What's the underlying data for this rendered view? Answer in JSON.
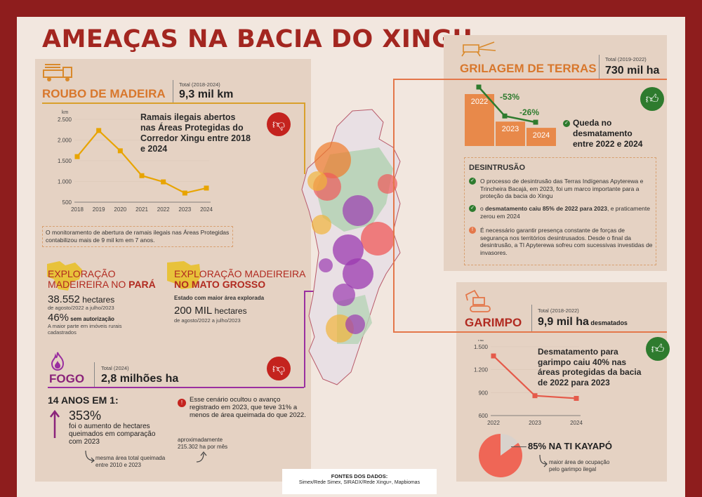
{
  "title": "AMEAÇAS NA BACIA DO XINGU",
  "roubo": {
    "heading": "ROUBO DE MADEIRA",
    "total_label": "Total (2018-2024)",
    "total_value": "9,3 mil km",
    "chart_desc": "Ramais ilegais abertos nas Áreas Protegidas do Corredor Xingu entre 2018 e 2024",
    "note": "O monitoramento de abertura de ramais ilegais nas Áreas Protegidas contabilizou mais de 9 mil km em 7 anos."
  },
  "chart_data": [
    {
      "type": "line",
      "ylabel": "km",
      "categories": [
        "2018",
        "2019",
        "2020",
        "2021",
        "2022",
        "2023",
        "2024"
      ],
      "values": [
        1600,
        2230,
        1740,
        1140,
        990,
        720,
        840
      ],
      "ylim": [
        500,
        2500
      ],
      "yticks": [
        "2.500",
        "2.000",
        "1.500",
        "1.000",
        "500"
      ],
      "color": "#e8a400"
    },
    {
      "type": "line",
      "ylabel": "ha",
      "categories": [
        "2022",
        "2023",
        "2024"
      ],
      "values": [
        1380,
        860,
        825
      ],
      "ylim": [
        600,
        1500
      ],
      "yticks": [
        "1.500",
        "1.200",
        "900",
        "600"
      ],
      "color": "#e55a4a"
    },
    {
      "type": "bar",
      "categories": [
        "2022",
        "2023",
        "2024"
      ],
      "values": [
        100,
        47,
        35
      ],
      "annotations": [
        "-53%",
        "-26%"
      ],
      "color": "#e8894a"
    },
    {
      "type": "pie",
      "values": [
        85,
        15
      ],
      "colors": [
        "#ef6656",
        "#d9d2cc"
      ]
    }
  ],
  "para": {
    "heading_1": "EXPLORAÇÃO",
    "heading_2": "MADEIREIRA NO",
    "heading_state": "PARÁ",
    "value": "38.552",
    "unit": " hectares",
    "period": "de agosto/2022 a julho/2023",
    "pct": "46%",
    "pct_label": " sem autorização",
    "pct_note_1": "A maior parte em imóveis rurais",
    "pct_note_2": "cadastrados"
  },
  "mt": {
    "heading_1": "EXPLORAÇÃO MADEIREIRA",
    "heading_2": "NO MATO GROSSO",
    "sub": "Estado com maior área explorada",
    "value": "200 MIL",
    "unit": " hectares",
    "period": "de agosto/2022 a julho/2023"
  },
  "fogo": {
    "heading": "FOGO",
    "total_label": "Total (2024)",
    "total_value": "2,8 milhões ha",
    "subtitle": "14 ANOS EM 1:",
    "pct": "353%",
    "pct_desc_1": "foi o aumento de hectares",
    "pct_desc_2": "queimados em comparação",
    "pct_desc_3": "com 2023",
    "note_1": "mesma área total queimada",
    "note_2": "entre 2010 e 2023",
    "alert": "Esse cenário ocultou o avanço registrado em 2023, que teve 31% a menos de área queimada do que 2022.",
    "approx_1": "aproximadamente",
    "approx_2": "215.302 ha por mês"
  },
  "grilagem": {
    "heading": "GRILAGEM DE TERRAS",
    "total_label": "Total (2019-2022)",
    "total_value": "730 mil ha",
    "queda_1": "Queda no",
    "queda_2": "desmatamento",
    "queda_3": "entre 2022 e 2024"
  },
  "desintrusao": {
    "heading": "DESINTRUSÃO",
    "item1": "O processo de desintrusão das Terras Indígenas Apyterewa e Trincheira Bacajá, em 2023, foi um marco importante para a proteção da bacia do Xingu",
    "item2_pre": "o ",
    "item2_bold": "desmatamento caiu 85% de 2022 para 2023",
    "item2_post": ", e praticamente zerou em 2024",
    "item3": "É necessário garantir presença constante de forças de segurança nos territórios desintrusados. Desde o final da desintrusão, a TI Apyterewa sofreu com sucessivas investidas de invasores."
  },
  "garimpo": {
    "heading": "GARIMPO",
    "total_label": "Total (2018-2022)",
    "total_value": "9,9 mil ha",
    "total_suffix": " desmatados",
    "desc": "Desmatamento para garimpo caiu 40% nas áreas protegidas da bacia de 2022 para 2023",
    "pie_label": "85% NA TI KAYAPÓ",
    "pie_note_1": "maior área de ocupação",
    "pie_note_2": "pelo garimpo ilegal"
  },
  "fontes": {
    "heading": "FONTES DOS DADOS:",
    "text": "Simex/Rede Simex, SIRADX/Rede Xingu+, Mapbiomas"
  },
  "icons": {
    "thumb_down": "thumb-down-icon",
    "thumb_up": "thumb-up-icon",
    "truck": "truck-icon",
    "fire": "fire-icon",
    "excavator": "excavator-icon"
  }
}
